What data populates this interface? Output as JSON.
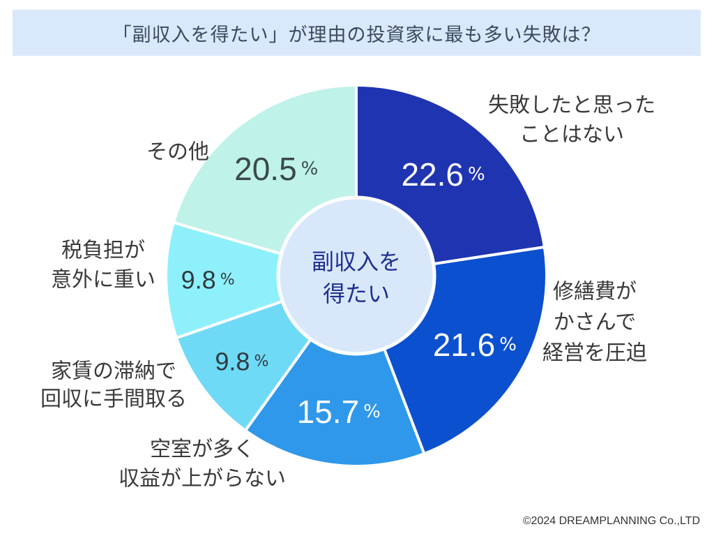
{
  "chart_data": {
    "type": "pie",
    "title": "「副収入を得たい」が理由の投資家に最も多い失敗は？",
    "center_label": [
      "副収入を",
      "得たい"
    ],
    "percent_sign": "%",
    "slices": [
      {
        "label": [
          "失敗したと思った",
          "ことはない"
        ],
        "value": 22.6,
        "display": "22.6",
        "color": "#1f34b0",
        "text_color": "#ffffff"
      },
      {
        "label": [
          "修繕費が",
          "かさんで",
          "経営を圧迫"
        ],
        "value": 21.6,
        "display": "21.6",
        "color": "#0b50cf",
        "text_color": "#ffffff"
      },
      {
        "label": [
          "空室が多く",
          "収益が上がらない"
        ],
        "value": 15.7,
        "display": "15.7",
        "color": "#2f98ea",
        "text_color": "#ffffff"
      },
      {
        "label": [
          "家賃の滞納で",
          "回収に手間取る"
        ],
        "value": 9.8,
        "display": "9.8",
        "color": "#6fdaf5",
        "text_color": "#2f3a40"
      },
      {
        "label": [
          "税負担が",
          "意外に重い"
        ],
        "value": 9.8,
        "display": "9.8",
        "color": "#8ef0fb",
        "text_color": "#2f3a40"
      },
      {
        "label": [
          "その他"
        ],
        "value": 20.5,
        "display": "20.5",
        "color": "#bff2e9",
        "text_color": "#3a4a48"
      }
    ]
  },
  "footer": {
    "copyright": "©2024 DREAMPLANNING Co.,LTD"
  }
}
